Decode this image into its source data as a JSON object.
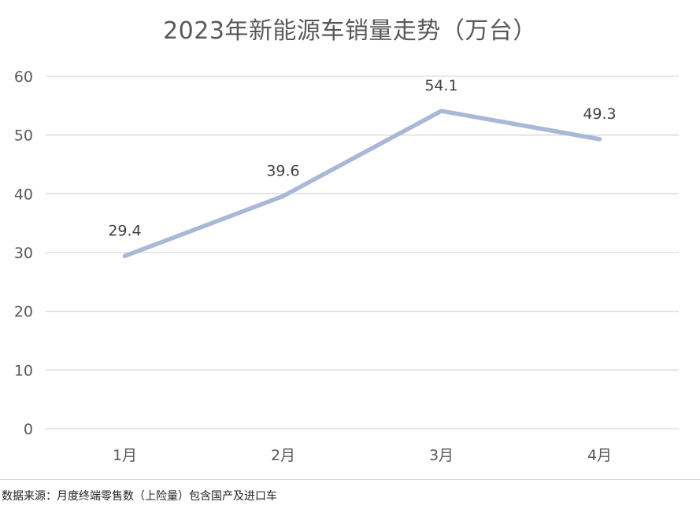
{
  "chart_data": {
    "type": "line",
    "title": "2023年新能源车销量走势（万台）",
    "categories": [
      "1月",
      "2月",
      "3月",
      "4月"
    ],
    "series": [
      {
        "values": [
          29.4,
          39.6,
          54.1,
          49.3
        ],
        "data_labels": [
          "29.4",
          "39.6",
          "54.1",
          "49.3"
        ]
      }
    ],
    "ylim": [
      0,
      60
    ],
    "yticks": [
      0,
      10,
      20,
      30,
      40,
      50,
      60
    ],
    "grid": true,
    "legend": "none",
    "line_color": "#a9b8d6",
    "grid_color": "#d9d9d9"
  },
  "source_note": "数据来源：月度终端零售数（上险量）包含国产及进口车"
}
